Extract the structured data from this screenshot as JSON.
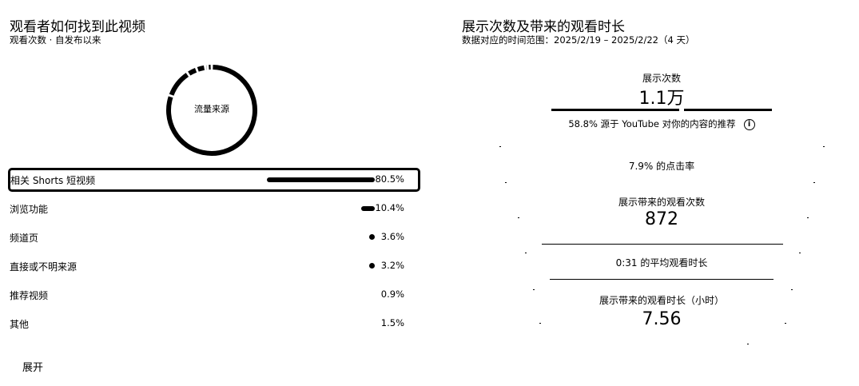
{
  "left": {
    "title": "观看者如何找到此视频",
    "subtitle": "观看次数 · 自发布以来",
    "donut_label": "流量来源",
    "rows": [
      {
        "label": "相关 Shorts 短视频",
        "pct": "80.5%",
        "value": 80.5
      },
      {
        "label": "浏览功能",
        "pct": "10.4%",
        "value": 10.4
      },
      {
        "label": "频道页",
        "pct": "3.6%",
        "value": 3.6
      },
      {
        "label": "直接或不明来源",
        "pct": "3.2%",
        "value": 3.2
      },
      {
        "label": "推荐视频",
        "pct": "0.9%",
        "value": 0.9
      },
      {
        "label": "其他",
        "pct": "1.5%",
        "value": 1.5
      }
    ],
    "expand_label": "展开"
  },
  "right": {
    "title": "展示次数及带来的观看时长",
    "subtitle": "数据对应的时间范围：2025/2/19 – 2025/2/22（4 天）",
    "impressions_label": "展示次数",
    "impressions_value": "1.1万",
    "impressions_note": "58.8% 源于 YouTube 对你的内容的推荐",
    "info_icon": "i",
    "ctr_text": "7.9% 的点击率",
    "views_label": "展示带来的观看次数",
    "views_value": "872",
    "avg_text": "0:31 的平均观看时长",
    "watch_time_label": "展示带来的观看时长（小时）",
    "watch_time_value": "7.56"
  }
}
